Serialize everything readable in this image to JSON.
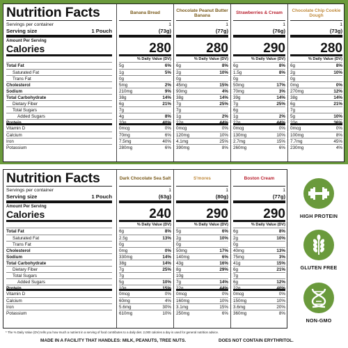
{
  "colors": {
    "green": "#6a9a3c",
    "brown": "#7a5a1a",
    "red": "#b81f2d",
    "tan": "#c08a3c"
  },
  "labels": {
    "title": "Nutrition Facts",
    "servings_per_container": "Servings per container",
    "serving_size": "Serving size",
    "serving_size_value": "1 Pouch",
    "amount_per_serving": "Amount Per Serving",
    "calories": "Calories",
    "daily_value": "% Daily Value (DV)",
    "total_fat": "Total Fat",
    "saturated_fat": "Saturated Fat",
    "trans_fat": "Trans Fat",
    "cholesterol": "Cholesterol",
    "sodium": "Sodium",
    "total_carbohydrate": "Total Carbohydrate",
    "dietary_fiber": "Dietary Fiber",
    "total_sugars": "Total Sugars",
    "added_sugars": "Added Sugars",
    "protein": "Protein",
    "vitamin_d": "Vitamin D",
    "calcium": "Calcium",
    "iron": "Iron",
    "potassium": "Potassium"
  },
  "panel1": [
    {
      "name": "Banana Bread",
      "servings": "1",
      "size": "(73g)",
      "calories": "280",
      "rows": [
        [
          "5g",
          "6%"
        ],
        [
          "1g",
          "5%"
        ],
        [
          "0g",
          ""
        ],
        [
          "5mg",
          "2%"
        ],
        [
          "210mg",
          "9%"
        ],
        [
          "38g",
          "14%"
        ],
        [
          "6g",
          "21%"
        ],
        [
          "7g",
          ""
        ],
        [
          "4g",
          "8%"
        ],
        [
          "20g",
          "40%"
        ],
        [
          "0mcg",
          "0%"
        ],
        [
          "70mg",
          "6%"
        ],
        [
          "7.5mg",
          "40%"
        ],
        [
          "280mg",
          "6%"
        ]
      ]
    },
    {
      "name": "Chocolate Peanut Butter Banana",
      "servings": "1",
      "size": "(77g)",
      "calories": "280",
      "rows": [
        [
          "6g",
          "8%"
        ],
        [
          "2g",
          "10%"
        ],
        [
          "0g",
          ""
        ],
        [
          "45mg",
          "15%"
        ],
        [
          "90mg",
          "4%"
        ],
        [
          "38g",
          "14%"
        ],
        [
          "7g",
          "25%"
        ],
        [
          "7g",
          ""
        ],
        [
          "1g",
          "2%"
        ],
        [
          "22g",
          "44%"
        ],
        [
          "0mcg",
          "0%"
        ],
        [
          "120mg",
          "10%"
        ],
        [
          "4.1mg",
          "25%"
        ],
        [
          "390mg",
          "8%"
        ]
      ]
    },
    {
      "name": "Strawberries & Cream",
      "servings": "1",
      "size": "(76g)",
      "calories": "290",
      "rows": [
        [
          "6g",
          "8%"
        ],
        [
          "1.5g",
          "8%"
        ],
        [
          "0g",
          ""
        ],
        [
          "50mg",
          "17%"
        ],
        [
          "70mg",
          "3%"
        ],
        [
          "39g",
          "14%"
        ],
        [
          "7g",
          "25%"
        ],
        [
          "6g",
          ""
        ],
        [
          "1g",
          "2%"
        ],
        [
          "22g",
          "44%"
        ],
        [
          "0mcg",
          "0%"
        ],
        [
          "130mg",
          "10%"
        ],
        [
          "2.7mg",
          "15%"
        ],
        [
          "260mg",
          "6%"
        ]
      ]
    },
    {
      "name": "Chocolate Chip Cookie Dough",
      "servings": "1",
      "size": "(73g)",
      "calories": "280",
      "rows": [
        [
          "6g",
          "8%"
        ],
        [
          "2g",
          "10%"
        ],
        [
          "0g",
          ""
        ],
        [
          "0mg",
          "0%"
        ],
        [
          "270mg",
          "12%"
        ],
        [
          "38g",
          "14%"
        ],
        [
          "6g",
          "21%"
        ],
        [
          "7g",
          ""
        ],
        [
          "5g",
          "10%"
        ],
        [
          "20g",
          "36%"
        ],
        [
          "0mcg",
          "0%"
        ],
        [
          "100mg",
          "8%"
        ],
        [
          "7.7mg",
          "45%"
        ],
        [
          "230mg",
          "4%"
        ]
      ]
    }
  ],
  "panel2": [
    {
      "name": "Dark Chocolate Sea Salt",
      "servings": "1",
      "size": "(63g)",
      "calories": "240",
      "rows": [
        [
          "6g",
          "8%"
        ],
        [
          "2.5g",
          "13%"
        ],
        [
          "0g",
          ""
        ],
        [
          "0mg",
          "0%"
        ],
        [
          "330mg",
          "14%"
        ],
        [
          "38g",
          "14%"
        ],
        [
          "7g",
          "25%"
        ],
        [
          "7g",
          ""
        ],
        [
          "5g",
          "10%"
        ],
        [
          "10g",
          "15%"
        ],
        [
          "0mcg",
          "0%"
        ],
        [
          "60mg",
          "4%"
        ],
        [
          "5.6mg",
          "30%"
        ],
        [
          "610mg",
          "10%"
        ]
      ]
    },
    {
      "name": "S'mores",
      "servings": "1",
      "size": "(80g)",
      "calories": "290",
      "rows": [
        [
          "5g",
          "6%"
        ],
        [
          "2g",
          "10%"
        ],
        [
          "0g",
          ""
        ],
        [
          "50mg",
          "17%"
        ],
        [
          "140mg",
          "6%"
        ],
        [
          "43g",
          "16%"
        ],
        [
          "8g",
          "29%"
        ],
        [
          "10g",
          ""
        ],
        [
          "7g",
          "14%"
        ],
        [
          "22g",
          "44%"
        ],
        [
          "0mcg",
          "0%"
        ],
        [
          "160mg",
          "10%"
        ],
        [
          "3.1mg",
          "15%"
        ],
        [
          "250mg",
          "6%"
        ]
      ]
    },
    {
      "name": "Boston Cream",
      "servings": "1",
      "size": "(77g)",
      "calories": "290",
      "rows": [
        [
          "6g",
          "8%"
        ],
        [
          "2g",
          "10%"
        ],
        [
          "0g",
          ""
        ],
        [
          "40mg",
          "13%"
        ],
        [
          "75mg",
          "3%"
        ],
        [
          "41g",
          "15%"
        ],
        [
          "6g",
          "21%"
        ],
        [
          "7g",
          ""
        ],
        [
          "6g",
          "12%"
        ],
        [
          "22g",
          "40%"
        ],
        [
          "0mcg",
          "0%"
        ],
        [
          "150mg",
          "10%"
        ],
        [
          "3.6mg",
          "20%"
        ],
        [
          "360mg",
          "8%"
        ]
      ]
    }
  ],
  "badges": {
    "high_protein": "HIGH PROTEIN",
    "gluten_free": "GLUTEN FREE",
    "non_gmo": "NON-GMO"
  },
  "footer": {
    "footnote": "* The % Daily Value (DV) tells you how much a nutrient in a serving of food contributes to a daily diet. 2,000 calories a day is used for general nutrition advice.",
    "facility": "MADE IN A FACILITY THAT HANDLES: MILK, PEANUTS, TREE NUTS.",
    "erythritol": "DOES NOT CONTAIN ERYTHRITOL."
  }
}
